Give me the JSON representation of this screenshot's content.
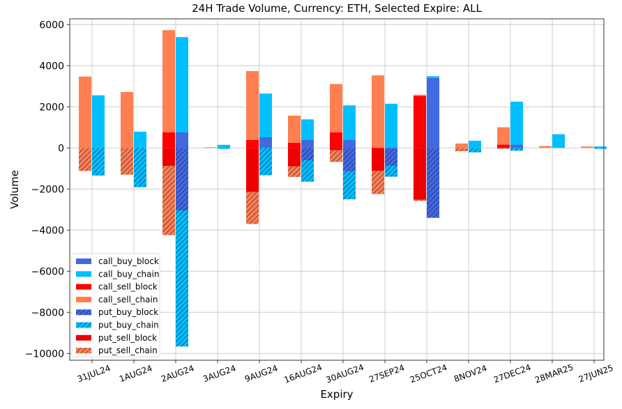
{
  "chart_data": {
    "type": "bar",
    "stacked": true,
    "title": "24H Trade Volume, Currency: ETH, Selected Expire: ALL",
    "xlabel": "Expiry",
    "ylabel": "Volume",
    "ylim": [
      -10400,
      6400
    ],
    "yticks": [
      6000,
      4000,
      2000,
      0,
      -2000,
      -4000,
      -6000,
      -8000,
      -10000
    ],
    "ytick_labels": [
      "6000",
      "4000",
      "2000",
      "0",
      "−2000",
      "−4000",
      "−6000",
      "−8000",
      "−10000"
    ],
    "grid": true,
    "legend_position": "lower-left",
    "categories": [
      "31JUL24",
      "1AUG24",
      "2AUG24",
      "3AUG24",
      "9AUG24",
      "16AUG24",
      "30AUG24",
      "27SEP24",
      "25OCT24",
      "8NOV24",
      "27DEC24",
      "28MAR25",
      "27JUN25"
    ],
    "series": [
      {
        "name": "call_buy_block",
        "color": "#4169e1",
        "hatch": false,
        "side": "buy",
        "values": [
          0,
          0,
          757,
          0,
          520,
          385,
          385,
          0,
          3410,
          0,
          160,
          0,
          0
        ]
      },
      {
        "name": "call_buy_chain",
        "color": "#00bfff",
        "hatch": false,
        "side": "buy",
        "values": [
          2560,
          790,
          4633,
          150,
          2125,
          1005,
          1685,
          2150,
          80,
          350,
          2090,
          667,
          70
        ]
      },
      {
        "name": "call_sell_block",
        "color": "#ff0000",
        "hatch": false,
        "side": "sell",
        "values": [
          0,
          0,
          757,
          0,
          385,
          250,
          757,
          0,
          2530,
          0,
          160,
          0,
          0
        ]
      },
      {
        "name": "call_sell_chain",
        "color": "#ff7f50",
        "hatch": false,
        "side": "sell",
        "values": [
          3470,
          2720,
          4973,
          30,
          3355,
          1320,
          2353,
          3530,
          60,
          215,
          845,
          90,
          70
        ]
      },
      {
        "name": "put_buy_block",
        "color": "#4169e1",
        "hatch": true,
        "side": "buy",
        "values": [
          0,
          0,
          -3040,
          0,
          0,
          -600,
          -1140,
          -870,
          -3400,
          0,
          0,
          0,
          0
        ]
      },
      {
        "name": "put_buy_chain",
        "color": "#00bfff",
        "hatch": true,
        "side": "buy",
        "values": [
          -1345,
          -1910,
          -6620,
          -45,
          -1330,
          -1040,
          -1360,
          -530,
          0,
          -215,
          -135,
          0,
          -45
        ]
      },
      {
        "name": "put_sell_block",
        "color": "#ee0000",
        "hatch": false,
        "side": "sell",
        "values": [
          0,
          0,
          -870,
          0,
          -2140,
          -900,
          -113,
          -1120,
          -2520,
          0,
          0,
          0,
          0
        ]
      },
      {
        "name": "put_sell_chain",
        "color": "#ff7f50",
        "hatch": true,
        "side": "sell",
        "values": [
          -1120,
          -1300,
          -3370,
          0,
          -1560,
          -510,
          -567,
          -1120,
          -60,
          -160,
          -45,
          0,
          0
        ]
      }
    ]
  }
}
